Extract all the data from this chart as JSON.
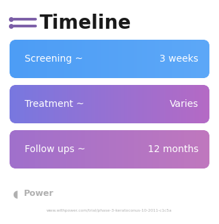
{
  "title": "Timeline",
  "background_color": "#ffffff",
  "icon_color": "#7b5ea7",
  "title_color": "#1a1a1a",
  "title_fontsize": 20,
  "rows": [
    {
      "label": "Screening ~",
      "value": "3 weeks",
      "color_left": "#4d9df5",
      "color_right": "#5da8f8"
    },
    {
      "label": "Treatment ~",
      "value": "Varies",
      "color_left": "#7878e0",
      "color_right": "#b56ac5"
    },
    {
      "label": "Follow ups ~",
      "value": "12 months",
      "color_left": "#a070cc",
      "color_right": "#c078be"
    }
  ],
  "watermark_text": "Power",
  "watermark_color": "#b0b0b0",
  "url_text": "www.withpower.com/trial/phase-3-keratoconus-10-2011-c1c5a",
  "url_color": "#b0b0b0",
  "text_color": "#ffffff",
  "label_fontsize": 10,
  "value_fontsize": 10
}
